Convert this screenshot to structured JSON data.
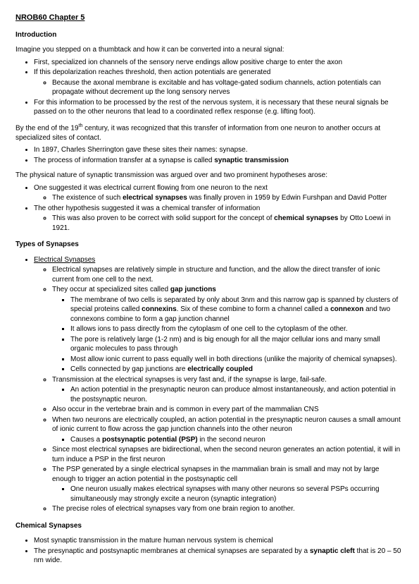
{
  "title": "NROB60 Chapter 5",
  "intro_head": "Introduction",
  "intro_p1": "Imagine you stepped on a thumbtack and how it can be converted into a neural signal:",
  "b1": "First, specialized ion channels of the sensory nerve endings allow positive charge to enter the axon",
  "b2": "If this depolarization reaches threshold, then action potentials are generated",
  "b2a": "Because the axonal membrane is excitable and has voltage-gated sodium channels, action potentials can propagate without decrement up the long sensory nerves",
  "b3": "For this information to be processed by the rest of the nervous system, it is necessary that these neural signals be passed on to the other neurons that lead to a coordinated reflex response (e.g. lifting foot).",
  "intro_p2a": "By the end of the 19",
  "intro_p2b": " century, it was recognized that this transfer of information from one neuron to another occurs at specialized sites of contact.",
  "b4": "In 1897, Charles Sherrington gave these sites their names: synapse.",
  "b5a": "The process of information transfer at a synapse is called ",
  "b5b": "synaptic transmission",
  "intro_p3": "The physical nature of synaptic transmission was argued over and two prominent hypotheses arose:",
  "b6": "One suggested it was electrical current flowing from one neuron to the next",
  "b6a_pre": "The existence of such ",
  "b6a_bold": "electrical synapses",
  "b6a_post": " was finally proven in 1959 by Edwin Furshpan and David Potter",
  "b7": "The other hypothesis suggested it was a chemical transfer of information",
  "b7a_pre": "This was also proven to be correct with solid support for the concept of ",
  "b7a_bold": "chemical synapses",
  "b7a_post": " by Otto Loewi in 1921.",
  "types_head": "Types of Synapses",
  "es_head": "Electrical Synapses",
  "es1": "Electrical synapses are relatively simple in structure and function, and the allow the direct transfer of ionic current from one cell to the next.",
  "es2_pre": "They occur at specialized sites called ",
  "es2_bold": "gap junctions",
  "es2a_pre": "The membrane of two cells is separated by only about 3nm and this narrow gap is spanned by clusters of special proteins called ",
  "es2a_bold1": "connexins",
  "es2a_mid": ". Six of these combine to form a channel called a ",
  "es2a_bold2": "connexon",
  "es2a_post": " and two connexons combine to form a gap junction channel",
  "es2b": "It allows ions to pass directly from the cytoplasm of one cell to the cytoplasm of the other.",
  "es2c": "The pore is relatively large (1-2 nm) and is big enough for all the major cellular ions and many small organic molecules to pass through",
  "es2d": "Most allow ionic current to pass equally well in both directions (unlike the majority of chemical synapses).",
  "es2e_pre": "Cells connected by gap junctions are ",
  "es2e_bold": "electrically coupled",
  "es3": "Transmission at the electrical synapses is very fast and, if the synapse is large, fail-safe.",
  "es3a": "An action potential in the presynaptic neuron can produce almost instantaneously, and action potential in the postsynaptic neuron.",
  "es4": "Also occur in the vertebrae brain and is common in every part of the mammalian CNS",
  "es5": "When two neurons are electrically coupled, an action potential in the presynaptic neuron causes a small amount of ionic current to flow across the gap junction channels into the other neuron",
  "es5a_pre": "Causes a ",
  "es5a_bold": "postsynaptic potential (PSP)",
  "es5a_post": " in the second neuron",
  "es6": "Since most electrical synapses are bidirectional, when the second neuron generates an action potential, it will in turn induce a PSP in the first neuron",
  "es7": "The PSP generated by a single electrical synapses in the mammalian brain is small and may not by large enough to trigger an action potential in the postsynaptic cell",
  "es7a": "One neuron usually makes electrical synapses with many other neurons so several PSPs occurring simultaneously may strongly excite a neuron (synaptic integration)",
  "es8": "The precise roles of electrical synapses vary from one brain region to another.",
  "cs_head": "Chemical Synapses",
  "cs1": "Most synaptic transmission in the mature human nervous system is chemical",
  "cs2_pre": "The presynaptic and postsynaptic membranes at chemical synapses are separated by a ",
  "cs2_bold": "synaptic cleft",
  "cs2_post": " that is 20 – 50 nm wide."
}
